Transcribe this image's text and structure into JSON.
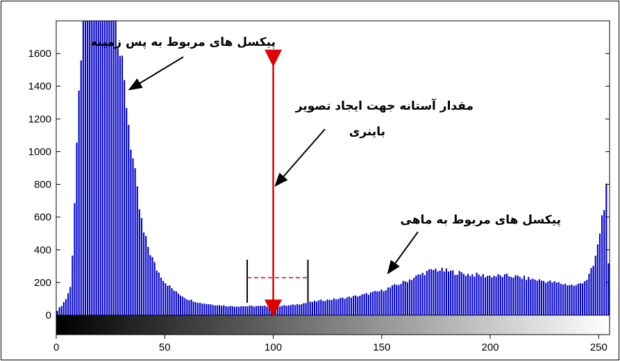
{
  "chart_data": {
    "type": "bar",
    "title": "",
    "xlabel": "",
    "ylabel": "",
    "xlim": [
      0,
      255
    ],
    "ylim": [
      0,
      1800
    ],
    "x_ticks": [
      0,
      50,
      100,
      150,
      200,
      250
    ],
    "y_ticks": [
      0,
      200,
      400,
      600,
      800,
      1000,
      1200,
      1400,
      1600
    ],
    "bar_color": "#0000cc",
    "grayscale_colorbar": true,
    "histogram_profile": [
      [
        0,
        30
      ],
      [
        2,
        60
      ],
      [
        4,
        100
      ],
      [
        6,
        170
      ],
      [
        7,
        380
      ],
      [
        8,
        700
      ],
      [
        9,
        1050
      ],
      [
        10,
        1300
      ],
      [
        11,
        1500
      ],
      [
        12,
        1800
      ],
      [
        27,
        1800
      ],
      [
        28,
        1700
      ],
      [
        30,
        1500
      ],
      [
        32,
        1300
      ],
      [
        34,
        1050
      ],
      [
        36,
        850
      ],
      [
        38,
        650
      ],
      [
        40,
        500
      ],
      [
        43,
        380
      ],
      [
        46,
        280
      ],
      [
        50,
        200
      ],
      [
        55,
        140
      ],
      [
        60,
        100
      ],
      [
        66,
        75
      ],
      [
        72,
        65
      ],
      [
        80,
        55
      ],
      [
        90,
        55
      ],
      [
        100,
        55
      ],
      [
        108,
        60
      ],
      [
        115,
        75
      ],
      [
        122,
        90
      ],
      [
        130,
        100
      ],
      [
        140,
        120
      ],
      [
        150,
        150
      ],
      [
        160,
        200
      ],
      [
        170,
        260
      ],
      [
        175,
        280
      ],
      [
        180,
        270
      ],
      [
        190,
        250
      ],
      [
        200,
        240
      ],
      [
        210,
        240
      ],
      [
        220,
        220
      ],
      [
        230,
        200
      ],
      [
        240,
        180
      ],
      [
        245,
        220
      ],
      [
        248,
        300
      ],
      [
        250,
        420
      ],
      [
        252,
        600
      ],
      [
        254,
        760
      ],
      [
        255,
        300
      ]
    ],
    "annotations": {
      "background": "پیکسل های مربوط به پس زمینه",
      "threshold_line1": "مقدار آستانه جهت ایجاد تصویر",
      "threshold_line2": "باینری",
      "fish": "پیکسل های مربوط به ماهی"
    },
    "threshold_value": 100,
    "threshold_range": [
      88,
      116
    ]
  }
}
